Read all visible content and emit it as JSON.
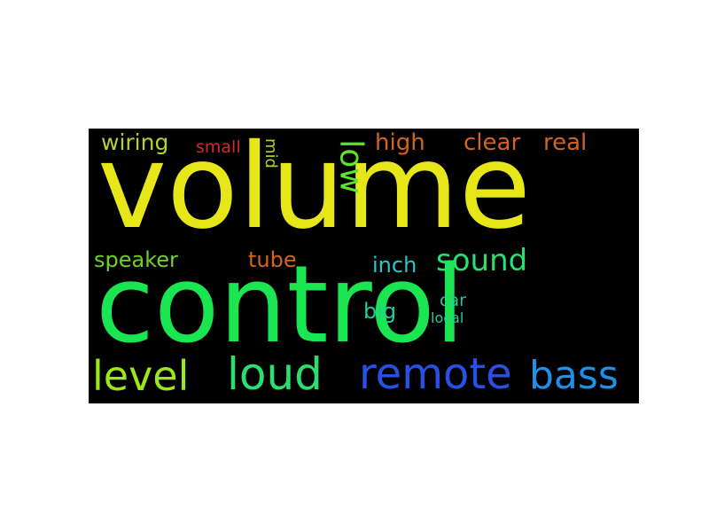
{
  "cloud": {
    "background": "#000000",
    "words": [
      {
        "id": "volume",
        "text": "volume",
        "color": "#e6e619"
      },
      {
        "id": "control",
        "text": "control",
        "color": "#19e650"
      },
      {
        "id": "remote",
        "text": "remote",
        "color": "#2850e6"
      },
      {
        "id": "bass",
        "text": "bass",
        "color": "#1e90e6"
      },
      {
        "id": "loud",
        "text": "loud",
        "color": "#28e070"
      },
      {
        "id": "level",
        "text": "level",
        "color": "#9ce619"
      },
      {
        "id": "sound",
        "text": "sound",
        "color": "#28e070"
      },
      {
        "id": "low",
        "text": "low",
        "color": "#5ce628"
      },
      {
        "id": "high",
        "text": "high",
        "color": "#d2641e"
      },
      {
        "id": "clear",
        "text": "clear",
        "color": "#d2641e"
      },
      {
        "id": "real",
        "text": "real",
        "color": "#d2641e"
      },
      {
        "id": "wiring",
        "text": "wiring",
        "color": "#b4d228"
      },
      {
        "id": "small",
        "text": "small",
        "color": "#d22828"
      },
      {
        "id": "mid",
        "text": "mid",
        "color": "#b4d228"
      },
      {
        "id": "speaker",
        "text": "speaker",
        "color": "#6ed228"
      },
      {
        "id": "tube",
        "text": "tube",
        "color": "#d2641e"
      },
      {
        "id": "inch",
        "text": "inch",
        "color": "#28c8c8"
      },
      {
        "id": "big",
        "text": "big",
        "color": "#28c8a0"
      },
      {
        "id": "car",
        "text": "car",
        "color": "#28c8a0"
      },
      {
        "id": "local",
        "text": "local",
        "color": "#28c8a0"
      }
    ]
  }
}
